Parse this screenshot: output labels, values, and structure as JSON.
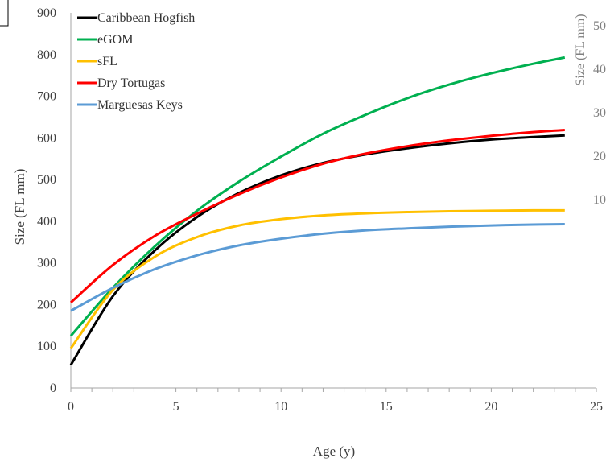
{
  "chart_data": {
    "type": "line",
    "xlabel": "Age (y)",
    "ylabel": "Size (FL mm)",
    "xlim": [
      0,
      25
    ],
    "ylim": [
      0,
      900
    ],
    "x_ticks": [
      "0",
      "5",
      "10",
      "15",
      "20",
      "25"
    ],
    "y_ticks": [
      "0",
      "100",
      "200",
      "300",
      "400",
      "500",
      "600",
      "700",
      "800",
      "900"
    ],
    "grid": false,
    "legend_position": "top-left",
    "series": [
      {
        "name": "Caribbean Hogfish",
        "color": "#000000",
        "x": [
          0,
          2,
          4,
          6,
          8,
          10,
          12,
          14,
          16,
          18,
          20,
          22,
          23.5
        ],
        "y": [
          55,
          220,
          330,
          410,
          468,
          510,
          540,
          560,
          575,
          587,
          596,
          602,
          606
        ]
      },
      {
        "name": "eGOM",
        "color": "#00b050",
        "x": [
          0,
          2,
          4,
          6,
          8,
          10,
          12,
          14,
          16,
          18,
          20,
          22,
          23.5
        ],
        "y": [
          125,
          240,
          340,
          425,
          495,
          555,
          610,
          655,
          695,
          728,
          755,
          778,
          793
        ]
      },
      {
        "name": "sFL",
        "color": "#ffc000",
        "x": [
          0,
          2,
          4,
          6,
          8,
          10,
          12,
          14,
          16,
          18,
          20,
          22,
          23.5
        ],
        "y": [
          95,
          235,
          315,
          362,
          390,
          405,
          414,
          419,
          422,
          424,
          425,
          426,
          426
        ]
      },
      {
        "name": "Dry Tortugas",
        "color": "#ff0000",
        "x": [
          0,
          2,
          4,
          6,
          8,
          10,
          12,
          14,
          16,
          18,
          20,
          22,
          23.5
        ],
        "y": [
          205,
          295,
          365,
          418,
          465,
          505,
          538,
          562,
          580,
          594,
          605,
          614,
          619
        ]
      },
      {
        "name": "Marguesas Keys",
        "color": "#5b9bd5",
        "x": [
          0,
          2,
          4,
          6,
          8,
          10,
          12,
          14,
          16,
          18,
          20,
          22,
          23.5
        ],
        "y": [
          185,
          240,
          285,
          318,
          342,
          358,
          370,
          378,
          383,
          387,
          390,
          392,
          393
        ]
      }
    ]
  },
  "overlap_panel": {
    "ylabel": "Size (FL mm)",
    "y_ticks": [
      "50",
      "40",
      "30",
      "20",
      "10"
    ]
  }
}
